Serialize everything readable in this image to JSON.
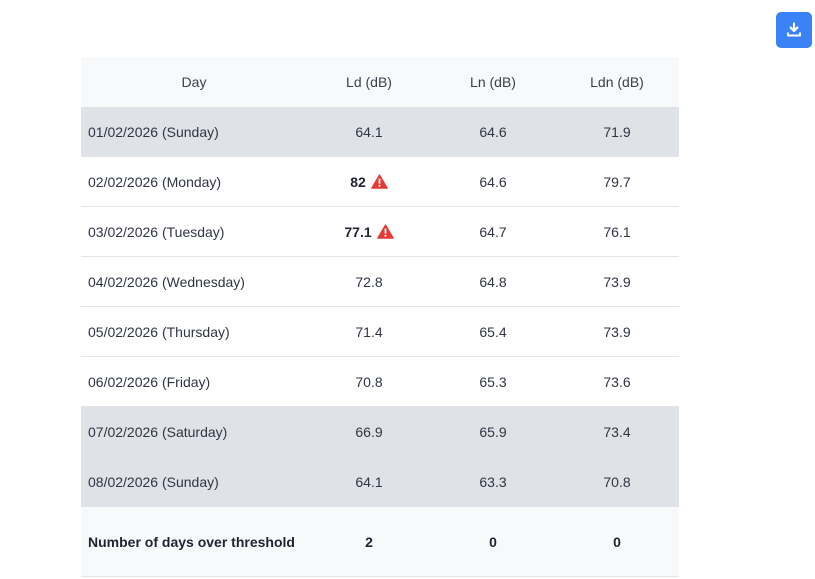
{
  "toolbar": {
    "download_icon": "download-icon",
    "accent": "#3b82f6"
  },
  "table": {
    "headers": {
      "day": "Day",
      "ld": "Ld (dB)",
      "ln": "Ln (dB)",
      "ldn": "Ldn (dB)"
    },
    "rows": [
      {
        "day": "01/02/2026 (Sunday)",
        "ld": "64.1",
        "ln": "64.6",
        "ldn": "71.9",
        "weekend": true,
        "ld_over": false
      },
      {
        "day": "02/02/2026 (Monday)",
        "ld": "82",
        "ln": "64.6",
        "ldn": "79.7",
        "weekend": false,
        "ld_over": true
      },
      {
        "day": "03/02/2026 (Tuesday)",
        "ld": "77.1",
        "ln": "64.7",
        "ldn": "76.1",
        "weekend": false,
        "ld_over": true
      },
      {
        "day": "04/02/2026 (Wednesday)",
        "ld": "72.8",
        "ln": "64.8",
        "ldn": "73.9",
        "weekend": false,
        "ld_over": false
      },
      {
        "day": "05/02/2026 (Thursday)",
        "ld": "71.4",
        "ln": "65.4",
        "ldn": "73.9",
        "weekend": false,
        "ld_over": false
      },
      {
        "day": "06/02/2026 (Friday)",
        "ld": "70.8",
        "ln": "65.3",
        "ldn": "73.6",
        "weekend": false,
        "ld_over": false
      },
      {
        "day": "07/02/2026 (Saturday)",
        "ld": "66.9",
        "ln": "65.9",
        "ldn": "73.4",
        "weekend": true,
        "ld_over": false
      },
      {
        "day": "08/02/2026 (Sunday)",
        "ld": "64.1",
        "ln": "63.3",
        "ldn": "70.8",
        "weekend": true,
        "ld_over": false
      }
    ],
    "summary": {
      "label": "Number of days over threshold",
      "ld": "2",
      "ln": "0",
      "ldn": "0"
    },
    "warning_icon": "warning-triangle-icon",
    "warning_color": "#e53935"
  }
}
